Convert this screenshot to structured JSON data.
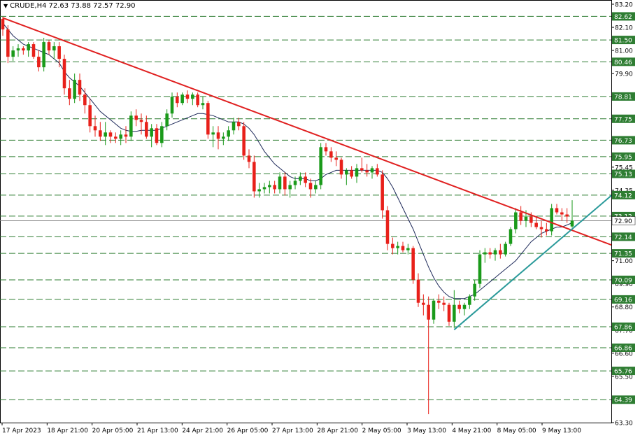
{
  "header": {
    "symbol_timeframe": "CRUDE,H4",
    "ohlc": "72.63 73.88 72.57 72.90",
    "menu_icon": "triangle-down-icon"
  },
  "colors": {
    "bull": "#1a9a1a",
    "bear": "#e8201a",
    "trendline_down": "#e02020",
    "trendline_up": "#2a9a9a",
    "ma_line": "#1e2a5a",
    "level_line": "#2e7d32",
    "level_label_bg": "#2e7d32",
    "level_label_text": "#ffffff",
    "current_price_line": "#888888"
  },
  "chart_data": {
    "type": "candlestick",
    "title": "CRUDE,H4",
    "ylim": [
      63.3,
      83.2
    ],
    "y_ticks": [
      "83.20",
      "82.10",
      "81.00",
      "79.90",
      "78.81",
      "77.75",
      "76.73",
      "75.45",
      "74.35",
      "72.90",
      "72.14",
      "71.00",
      "69.90",
      "68.80",
      "67.70",
      "66.60",
      "65.50",
      "63.30"
    ],
    "x_labels": [
      "17 Apr 2023",
      "18 Apr 21:00",
      "20 Apr 05:00",
      "21 Apr 13:00",
      "24 Apr 21:00",
      "26 Apr 05:00",
      "27 Apr 13:00",
      "28 Apr 21:00",
      "2 May 05:00",
      "3 May 13:00",
      "4 May 21:00",
      "8 May 05:00",
      "9 May 13:00"
    ],
    "levels": [
      "82.62",
      "81.50",
      "80.46",
      "78.81",
      "77.75",
      "76.73",
      "75.95",
      "75.13",
      "74.12",
      "73.12",
      "72.14",
      "71.35",
      "70.09",
      "69.16",
      "67.86",
      "66.86",
      "65.76",
      "64.39"
    ],
    "current_price": "72.90",
    "candles": [
      [
        82.5,
        82.6,
        81.7,
        82.0
      ],
      [
        82.0,
        82.2,
        80.4,
        80.7
      ],
      [
        80.7,
        81.2,
        80.5,
        81.0
      ],
      [
        81.0,
        81.3,
        80.7,
        81.1
      ],
      [
        81.1,
        81.2,
        80.8,
        81.0
      ],
      [
        81.0,
        81.4,
        80.7,
        81.3
      ],
      [
        81.3,
        81.4,
        80.6,
        80.7
      ],
      [
        80.7,
        81.0,
        80.0,
        80.2
      ],
      [
        80.2,
        81.6,
        80.0,
        81.4
      ],
      [
        81.4,
        81.5,
        80.8,
        81.0
      ],
      [
        81.0,
        81.4,
        80.6,
        81.2
      ],
      [
        81.2,
        81.4,
        80.2,
        80.6
      ],
      [
        80.6,
        80.8,
        78.9,
        79.2
      ],
      [
        79.2,
        79.6,
        78.4,
        78.7
      ],
      [
        78.7,
        79.9,
        78.5,
        79.6
      ],
      [
        79.6,
        79.9,
        78.6,
        78.9
      ],
      [
        78.9,
        79.2,
        78.0,
        78.4
      ],
      [
        78.4,
        78.7,
        77.1,
        77.4
      ],
      [
        77.4,
        77.9,
        76.9,
        77.2
      ],
      [
        77.2,
        77.6,
        76.7,
        76.9
      ],
      [
        76.9,
        77.6,
        76.5,
        77.1
      ],
      [
        77.1,
        77.2,
        76.6,
        76.9
      ],
      [
        76.9,
        77.1,
        76.6,
        76.8
      ],
      [
        76.8,
        77.2,
        76.5,
        77.0
      ],
      [
        77.0,
        77.4,
        76.6,
        76.9
      ],
      [
        76.9,
        78.1,
        76.7,
        77.9
      ],
      [
        77.9,
        78.2,
        77.4,
        77.7
      ],
      [
        77.7,
        78.0,
        77.0,
        77.6
      ],
      [
        77.6,
        77.9,
        76.8,
        76.9
      ],
      [
        76.9,
        77.5,
        76.4,
        77.3
      ],
      [
        77.3,
        77.5,
        76.5,
        76.6
      ],
      [
        76.6,
        77.6,
        76.4,
        77.4
      ],
      [
        77.4,
        78.2,
        77.2,
        78.0
      ],
      [
        78.0,
        79.0,
        77.8,
        78.8
      ],
      [
        78.8,
        79.0,
        78.3,
        78.5
      ],
      [
        78.5,
        79.0,
        78.4,
        78.9
      ],
      [
        78.9,
        79.1,
        78.5,
        78.7
      ],
      [
        78.7,
        79.0,
        78.4,
        78.9
      ],
      [
        78.9,
        79.0,
        78.3,
        78.4
      ],
      [
        78.4,
        78.8,
        78.2,
        78.5
      ],
      [
        78.5,
        78.6,
        76.8,
        77.0
      ],
      [
        77.0,
        77.4,
        76.4,
        77.1
      ],
      [
        77.1,
        77.4,
        76.3,
        76.8
      ],
      [
        76.8,
        77.1,
        76.5,
        76.9
      ],
      [
        76.9,
        77.4,
        76.7,
        77.2
      ],
      [
        77.2,
        77.8,
        77.0,
        77.6
      ],
      [
        77.6,
        77.8,
        77.2,
        77.4
      ],
      [
        77.4,
        77.6,
        75.8,
        76.0
      ],
      [
        76.0,
        76.3,
        75.4,
        75.7
      ],
      [
        75.7,
        76.0,
        74.0,
        74.3
      ],
      [
        74.3,
        74.7,
        74.0,
        74.4
      ],
      [
        74.4,
        74.7,
        74.2,
        74.5
      ],
      [
        74.5,
        74.8,
        74.2,
        74.6
      ],
      [
        74.6,
        74.8,
        74.2,
        74.4
      ],
      [
        74.4,
        75.2,
        74.2,
        75.0
      ],
      [
        75.0,
        75.2,
        74.1,
        74.4
      ],
      [
        74.4,
        74.8,
        74.0,
        74.6
      ],
      [
        74.6,
        75.0,
        74.4,
        74.8
      ],
      [
        74.8,
        75.2,
        74.6,
        75.0
      ],
      [
        75.0,
        75.2,
        74.5,
        74.7
      ],
      [
        74.7,
        74.9,
        74.0,
        74.4
      ],
      [
        74.4,
        74.8,
        74.2,
        74.6
      ],
      [
        74.6,
        76.6,
        74.4,
        76.4
      ],
      [
        76.4,
        76.6,
        76.0,
        76.2
      ],
      [
        76.2,
        76.4,
        75.7,
        75.9
      ],
      [
        75.9,
        76.2,
        75.5,
        75.8
      ],
      [
        75.8,
        75.9,
        74.9,
        75.1
      ],
      [
        75.1,
        75.4,
        74.6,
        75.3
      ],
      [
        75.3,
        75.5,
        74.9,
        75.0
      ],
      [
        75.0,
        75.6,
        74.7,
        75.4
      ],
      [
        75.4,
        75.9,
        75.2,
        75.3
      ],
      [
        75.3,
        75.6,
        75.0,
        75.2
      ],
      [
        75.2,
        75.5,
        74.9,
        75.4
      ],
      [
        75.4,
        75.6,
        75.0,
        75.1
      ],
      [
        75.1,
        75.3,
        73.0,
        73.4
      ],
      [
        73.4,
        73.6,
        71.5,
        71.8
      ],
      [
        71.8,
        72.1,
        71.3,
        71.6
      ],
      [
        71.6,
        71.9,
        71.3,
        71.7
      ],
      [
        71.7,
        71.9,
        71.4,
        71.5
      ],
      [
        71.5,
        71.8,
        71.3,
        71.6
      ],
      [
        71.6,
        71.7,
        69.9,
        70.1
      ],
      [
        70.1,
        70.4,
        68.8,
        69.0
      ],
      [
        69.0,
        69.4,
        68.4,
        68.9
      ],
      [
        68.9,
        69.3,
        63.7,
        68.2
      ],
      [
        68.2,
        69.2,
        68.0,
        69.1
      ],
      [
        69.1,
        69.4,
        68.7,
        69.0
      ],
      [
        69.0,
        69.3,
        68.6,
        68.9
      ],
      [
        68.9,
        69.0,
        67.9,
        68.1
      ],
      [
        68.1,
        69.6,
        67.8,
        68.9
      ],
      [
        68.9,
        69.1,
        68.5,
        68.7
      ],
      [
        68.7,
        69.0,
        68.4,
        68.9
      ],
      [
        68.9,
        69.4,
        68.7,
        69.3
      ],
      [
        69.3,
        70.1,
        69.1,
        69.9
      ],
      [
        69.9,
        71.5,
        69.7,
        71.3
      ],
      [
        71.3,
        71.6,
        70.9,
        71.4
      ],
      [
        71.4,
        71.6,
        71.1,
        71.3
      ],
      [
        71.3,
        71.6,
        71.0,
        71.5
      ],
      [
        71.5,
        71.8,
        71.1,
        71.3
      ],
      [
        71.3,
        71.9,
        71.2,
        71.8
      ],
      [
        71.8,
        72.6,
        71.7,
        72.5
      ],
      [
        72.5,
        73.5,
        72.3,
        73.3
      ],
      [
        73.3,
        73.6,
        72.7,
        72.9
      ],
      [
        72.9,
        73.4,
        72.6,
        73.1
      ],
      [
        73.1,
        73.3,
        72.6,
        72.8
      ],
      [
        72.8,
        73.1,
        72.5,
        72.6
      ],
      [
        72.6,
        72.9,
        72.1,
        72.5
      ],
      [
        72.5,
        72.8,
        72.2,
        72.4
      ],
      [
        72.4,
        73.7,
        72.2,
        73.5
      ],
      [
        73.5,
        73.7,
        73.2,
        73.3
      ],
      [
        73.3,
        73.5,
        72.9,
        73.2
      ],
      [
        73.2,
        73.5,
        72.8,
        73.1
      ],
      [
        72.63,
        73.88,
        72.57,
        72.9
      ]
    ],
    "ma": [
      82.3,
      82.0,
      81.7,
      81.5,
      81.3,
      81.2,
      81.1,
      81.0,
      80.9,
      80.8,
      80.6,
      80.4,
      80.0,
      79.7,
      79.5,
      79.3,
      79.0,
      78.7,
      78.4,
      78.1,
      77.9,
      77.7,
      77.5,
      77.3,
      77.2,
      77.15,
      77.15,
      77.2,
      77.2,
      77.2,
      77.2,
      77.3,
      77.4,
      77.5,
      77.6,
      77.7,
      77.8,
      77.9,
      78.0,
      78.0,
      77.95,
      77.9,
      77.8,
      77.7,
      77.6,
      77.6,
      77.6,
      77.5,
      77.3,
      77.0,
      76.6,
      76.2,
      75.9,
      75.6,
      75.4,
      75.2,
      75.0,
      74.9,
      74.9,
      74.9,
      74.8,
      74.8,
      74.9,
      75.1,
      75.2,
      75.3,
      75.3,
      75.3,
      75.3,
      75.3,
      75.3,
      75.3,
      75.3,
      75.3,
      75.2,
      74.9,
      74.5,
      74.0,
      73.5,
      73.0,
      72.5,
      71.9,
      71.3,
      70.7,
      70.2,
      69.8,
      69.5,
      69.3,
      69.2,
      69.2,
      69.2,
      69.3,
      69.4,
      69.6,
      69.8,
      70.0,
      70.2,
      70.4,
      70.6,
      70.8,
      71.0,
      71.3,
      71.6,
      71.9,
      72.1,
      72.3,
      72.4,
      72.5,
      72.6,
      72.6,
      72.7,
      72.8
    ],
    "trendline_down": {
      "from": [
        0,
        82.55
      ],
      "to": [
        "end",
        71.75
      ]
    },
    "trendline_up": {
      "from": [
        88,
        67.72
      ],
      "to": [
        "end",
        74.1
      ]
    }
  }
}
